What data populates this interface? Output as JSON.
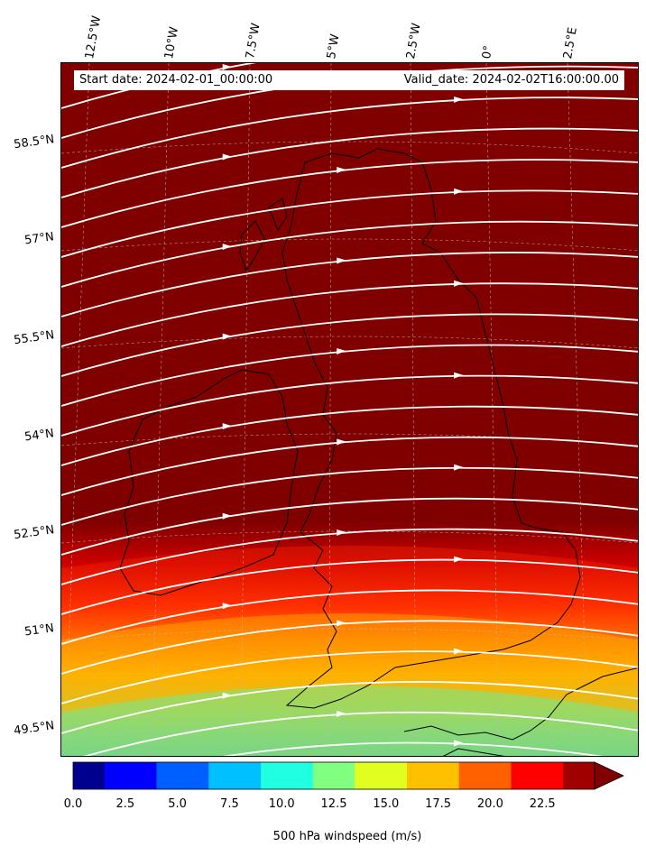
{
  "header": {
    "start_date": "Start date: 2024-02-01_00:00:00",
    "valid_date": "Valid_date: 2024-02-02T16:00:00.00"
  },
  "axes": {
    "lon_labels": [
      "12.5°W",
      "10°W",
      "7.5°W",
      "5°W",
      "2.5°W",
      "0°",
      "2.5°E"
    ],
    "lat_labels": [
      "58.5°N",
      "57°N",
      "55.5°N",
      "54°N",
      "52.5°N",
      "51°N",
      "49.5°N"
    ]
  },
  "colorbar": {
    "label": "500 hPa windspeed (m/s)",
    "ticks": [
      "0.0",
      "2.5",
      "5.0",
      "7.5",
      "10.0",
      "12.5",
      "15.0",
      "17.5",
      "20.0",
      "22.5"
    ],
    "vmin": 0,
    "vmax": 25,
    "extend": "max"
  },
  "colors": {
    "background_max": "#800000",
    "streamline": "#ffffff",
    "coastline": "#000000"
  }
}
